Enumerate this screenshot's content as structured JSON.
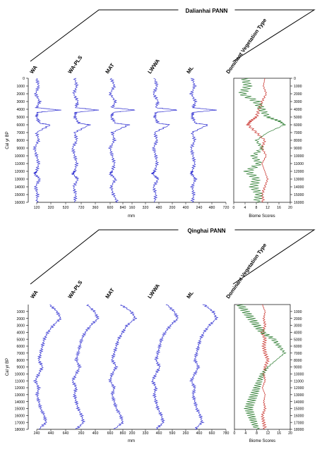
{
  "charts": [
    {
      "title": "Dalianhai PANN",
      "ylabel": "Cal yr BP",
      "yticks": [
        0,
        1000,
        2000,
        3000,
        4000,
        5000,
        6000,
        7000,
        8000,
        9000,
        10000,
        11000,
        12000,
        13000,
        14000,
        15000,
        16000
      ],
      "columns": [
        "WA",
        "WA-PLS",
        "MAT",
        "LWWA",
        "ML"
      ],
      "xticks": [
        "120",
        "320",
        "520",
        "720",
        "360",
        "600",
        "840",
        "160",
        "320",
        "480",
        "200",
        "400",
        "240",
        "480",
        "720"
      ],
      "xlabel": "mm",
      "veg_title": "Dominant Vegetation Type",
      "veg_xticks": [
        "0",
        "4",
        "8",
        "12",
        "16",
        "20"
      ],
      "veg_xlabel": "Biome Scores"
    },
    {
      "title": "Qinghai PANN",
      "ylabel": "Cal yr BP",
      "yticks": [
        1000,
        2000,
        3000,
        4000,
        5000,
        6000,
        7000,
        8000,
        9000,
        10000,
        11000,
        12000,
        13000,
        14000,
        15000,
        16000,
        17000,
        18000
      ],
      "columns": [
        "WA",
        "WA-PLS",
        "MAT",
        "LWWA",
        "ML"
      ],
      "xticks": [
        "240",
        "440",
        "640",
        "260",
        "460",
        "660",
        "860",
        "200",
        "330",
        "460",
        "590",
        "260",
        "460",
        "660",
        "780"
      ],
      "xlabel": "mm",
      "veg_title": "Dominant Vegetation Type",
      "veg_xticks": [
        "0",
        "4",
        "8",
        "12",
        "16",
        "20"
      ],
      "veg_xlabel": "Biome Scores"
    }
  ],
  "chart_data": [
    {
      "type": "line",
      "title": "Dalianhai PANN",
      "ylabel": "Cal yr BP",
      "ylim": [
        0,
        16000
      ],
      "xlabel": "mm",
      "panels": [
        {
          "name": "WA",
          "y": [
            0,
            1000,
            2000,
            3000,
            3800,
            4100,
            4400,
            5000,
            5800,
            6000,
            7000,
            8000,
            9000,
            10000,
            11000,
            12000,
            12300,
            13000,
            14000,
            15000,
            16000
          ],
          "x": [
            300,
            320,
            290,
            330,
            300,
            520,
            310,
            300,
            330,
            430,
            300,
            320,
            280,
            300,
            320,
            300,
            280,
            330,
            290,
            310,
            300
          ]
        },
        {
          "name": "WA-PLS",
          "y": [
            0,
            1000,
            2000,
            3000,
            3800,
            4100,
            4400,
            5000,
            5800,
            6000,
            7000,
            8000,
            9000,
            10000,
            11000,
            12000,
            12300,
            13000,
            14000,
            15000,
            16000
          ],
          "x": [
            340,
            360,
            330,
            370,
            350,
            560,
            350,
            340,
            380,
            480,
            340,
            360,
            320,
            340,
            360,
            340,
            320,
            370,
            330,
            350,
            340
          ]
        },
        {
          "name": "MAT",
          "y": [
            0,
            1000,
            2000,
            3000,
            3800,
            4100,
            4400,
            5000,
            5800,
            6000,
            7000,
            8000,
            9000,
            10000,
            11000,
            12000,
            12300,
            13000,
            14000,
            15000,
            16000
          ],
          "x": [
            200,
            230,
            190,
            240,
            210,
            420,
            220,
            200,
            240,
            360,
            210,
            230,
            190,
            210,
            230,
            210,
            190,
            240,
            200,
            220,
            260
          ]
        },
        {
          "name": "LWWA",
          "y": [
            0,
            1000,
            2000,
            3000,
            3800,
            4100,
            4400,
            5000,
            5800,
            6000,
            7000,
            8000,
            9000,
            10000,
            11000,
            12000,
            12300,
            13000,
            14000,
            15000,
            16000
          ],
          "x": [
            220,
            240,
            210,
            250,
            230,
            420,
            230,
            220,
            250,
            350,
            220,
            240,
            210,
            230,
            240,
            220,
            200,
            250,
            210,
            230,
            220
          ]
        },
        {
          "name": "ML",
          "y": [
            0,
            1000,
            2000,
            3000,
            3800,
            4100,
            4400,
            5000,
            5800,
            6000,
            7000,
            8000,
            9000,
            10000,
            11000,
            12000,
            12300,
            13000,
            14000,
            15000,
            16000
          ],
          "x": [
            240,
            270,
            230,
            280,
            250,
            520,
            250,
            240,
            280,
            420,
            240,
            270,
            230,
            250,
            270,
            240,
            230,
            280,
            240,
            260,
            240
          ]
        }
      ],
      "veg": {
        "xlim": [
          0,
          20
        ],
        "series": [
          {
            "color": "#c8302a",
            "y": [
              0,
              1000,
              2000,
              3000,
              4000,
              5000,
              5500,
              6000,
              7000,
              8000,
              9000,
              10000,
              11000,
              12000,
              13000,
              14000,
              15000,
              16000
            ],
            "x": [
              11,
              10.5,
              11.5,
              10,
              9,
              8,
              6,
              5,
              8,
              11,
              10,
              11.5,
              10,
              11,
              12,
              11,
              10,
              10.5
            ]
          },
          {
            "color": "#2e7d32",
            "y": [
              0,
              1000,
              2000,
              3000,
              4000,
              5000,
              5500,
              6000,
              7000,
              8000,
              9000,
              10000,
              11000,
              12000,
              13000,
              14000,
              15000,
              16000
            ],
            "x": [
              4,
              5,
              3,
              8,
              10,
              12,
              16,
              18,
              12,
              8,
              10,
              7,
              9,
              5,
              8,
              7,
              9,
              8
            ]
          }
        ]
      }
    },
    {
      "type": "line",
      "title": "Qinghai PANN",
      "ylabel": "Cal yr BP",
      "ylim": [
        0,
        18000
      ],
      "xlabel": "mm",
      "panels": [
        {
          "name": "WA",
          "y": [
            0,
            1000,
            2000,
            3000,
            4000,
            5000,
            6000,
            7000,
            8000,
            9000,
            10000,
            11000,
            12000,
            13000,
            14000,
            15000,
            16000,
            17000,
            18000
          ],
          "x": [
            360,
            400,
            420,
            380,
            350,
            330,
            320,
            310,
            300,
            320,
            300,
            280,
            300,
            290,
            300,
            310,
            330,
            340,
            300
          ]
        },
        {
          "name": "WA-PLS",
          "y": [
            0,
            1000,
            2000,
            3000,
            4000,
            5000,
            6000,
            7000,
            8000,
            9000,
            10000,
            11000,
            12000,
            13000,
            14000,
            15000,
            16000,
            17000,
            18000
          ],
          "x": [
            380,
            420,
            440,
            400,
            370,
            350,
            340,
            330,
            320,
            340,
            320,
            300,
            320,
            310,
            320,
            330,
            350,
            360,
            320
          ]
        },
        {
          "name": "MAT",
          "y": [
            0,
            1000,
            2000,
            3000,
            4000,
            5000,
            6000,
            7000,
            8000,
            9000,
            10000,
            11000,
            12000,
            13000,
            14000,
            15000,
            16000,
            17000,
            18000
          ],
          "x": [
            280,
            330,
            350,
            310,
            290,
            270,
            260,
            250,
            240,
            260,
            240,
            230,
            250,
            240,
            250,
            260,
            280,
            290,
            250
          ]
        },
        {
          "name": "LWWA",
          "y": [
            0,
            1000,
            2000,
            3000,
            4000,
            5000,
            6000,
            7000,
            8000,
            9000,
            10000,
            11000,
            12000,
            13000,
            14000,
            15000,
            16000,
            17000,
            18000
          ],
          "x": [
            420,
            460,
            480,
            440,
            410,
            390,
            380,
            370,
            360,
            380,
            360,
            340,
            360,
            350,
            360,
            370,
            390,
            400,
            360
          ]
        },
        {
          "name": "ML",
          "y": [
            0,
            1000,
            2000,
            3000,
            4000,
            5000,
            6000,
            7000,
            8000,
            9000,
            10000,
            11000,
            12000,
            13000,
            14000,
            15000,
            16000,
            17000,
            18000
          ],
          "x": [
            400,
            450,
            470,
            430,
            400,
            380,
            370,
            360,
            350,
            370,
            350,
            330,
            350,
            340,
            350,
            360,
            380,
            390,
            350
          ]
        }
      ],
      "veg": {
        "xlim": [
          0,
          20
        ],
        "series": [
          {
            "color": "#c8302a",
            "y": [
              0,
              1000,
              2000,
              3000,
              4000,
              5000,
              6000,
              7000,
              8000,
              9000,
              10000,
              11000,
              12000,
              13000,
              14000,
              15000,
              16000,
              17000,
              18000
            ],
            "x": [
              10,
              11,
              10.5,
              11,
              10,
              11,
              10.5,
              11,
              12,
              11,
              10.5,
              11,
              10,
              11,
              10.5,
              11,
              10,
              10.5,
              11
            ]
          },
          {
            "color": "#2e7d32",
            "y": [
              0,
              1000,
              2000,
              3000,
              4000,
              5000,
              6000,
              7000,
              8000,
              9000,
              10000,
              11000,
              12000,
              13000,
              14000,
              15000,
              16000,
              17000,
              18000
            ],
            "x": [
              2,
              4,
              6,
              8,
              10,
              14,
              16,
              18,
              15,
              12,
              10,
              9,
              8,
              7,
              6,
              5,
              6,
              7,
              8
            ]
          }
        ]
      }
    }
  ]
}
